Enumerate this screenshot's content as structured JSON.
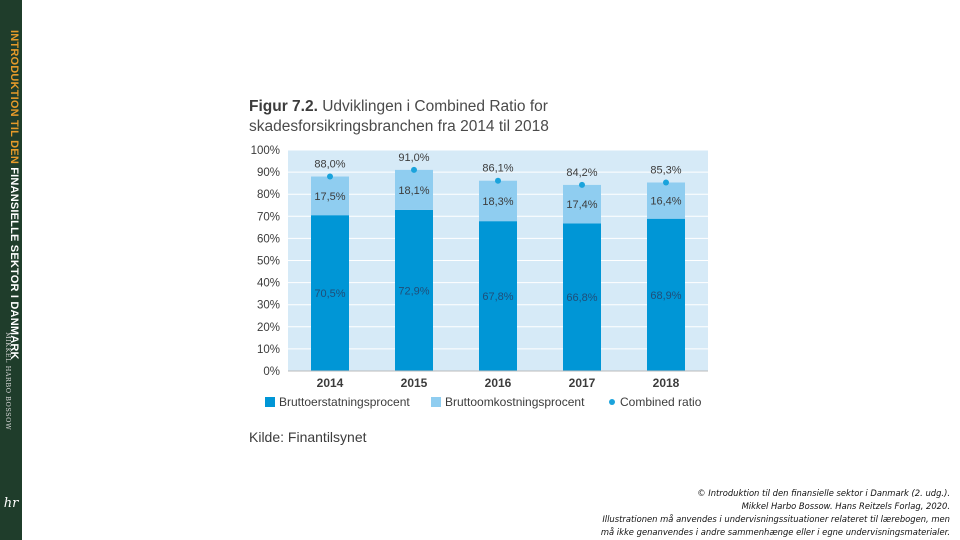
{
  "colors": {
    "spine": "#1f3d2b",
    "spine_accent": "#e59a2a",
    "plot_background": "#d6eaf7",
    "gross_claims": "#0096d6",
    "gross_expenses": "#8fcdf0",
    "combined_ratio": "#1aa3dc"
  },
  "spine": {
    "title_part1": "INTRODUKTION TIL DEN",
    "title_part2": "FINANSIELLE SEKTOR I DANMARK",
    "author": "MIKKEL HARBO BOSSOW",
    "logo": "hr"
  },
  "figure": {
    "label": "Figur 7.2.",
    "title": "Udviklingen i Combined Ratio for skadesforsikringsbranchen fra 2014 til 2018",
    "source": "Kilde: Finantilsynet"
  },
  "chart_data": {
    "type": "bar",
    "stacked": true,
    "categories": [
      "2014",
      "2015",
      "2016",
      "2017",
      "2018"
    ],
    "series": [
      {
        "name": "Bruttoerstatningsprocent",
        "kind": "bar",
        "values": [
          70.5,
          72.9,
          67.8,
          66.8,
          68.9
        ],
        "labels": [
          "70,5%",
          "72,9%",
          "67,8%",
          "66,8%",
          "68,9%"
        ]
      },
      {
        "name": "Bruttoomkostningsprocent",
        "kind": "bar",
        "values": [
          17.5,
          18.1,
          18.3,
          17.4,
          16.4
        ],
        "labels": [
          "17,5%",
          "18,1%",
          "18,3%",
          "17,4%",
          "16,4%"
        ]
      },
      {
        "name": "Combined ratio",
        "kind": "point",
        "values": [
          88.0,
          91.0,
          86.1,
          84.2,
          85.3
        ],
        "labels": [
          "88,0%",
          "91,0%",
          "86,1%",
          "84,2%",
          "85,3%"
        ]
      }
    ],
    "y_ticks": [
      "0%",
      "10%",
      "20%",
      "30%",
      "40%",
      "50%",
      "60%",
      "70%",
      "80%",
      "90%",
      "100%"
    ],
    "ylim": [
      0,
      100
    ],
    "grid": true,
    "legend": "bottom"
  },
  "credit": {
    "line1": "© Introduktion til den finansielle sektor i Danmark (2. udg.).",
    "line2": "Mikkel Harbo Bossow. Hans Reitzels Forlag, 2020.",
    "line3": "Illustrationen må anvendes i undervisningssituationer relateret til lærebogen, men",
    "line4": "må ikke genanvendes i andre sammenhænge eller i egne undervisningsmaterialer."
  }
}
